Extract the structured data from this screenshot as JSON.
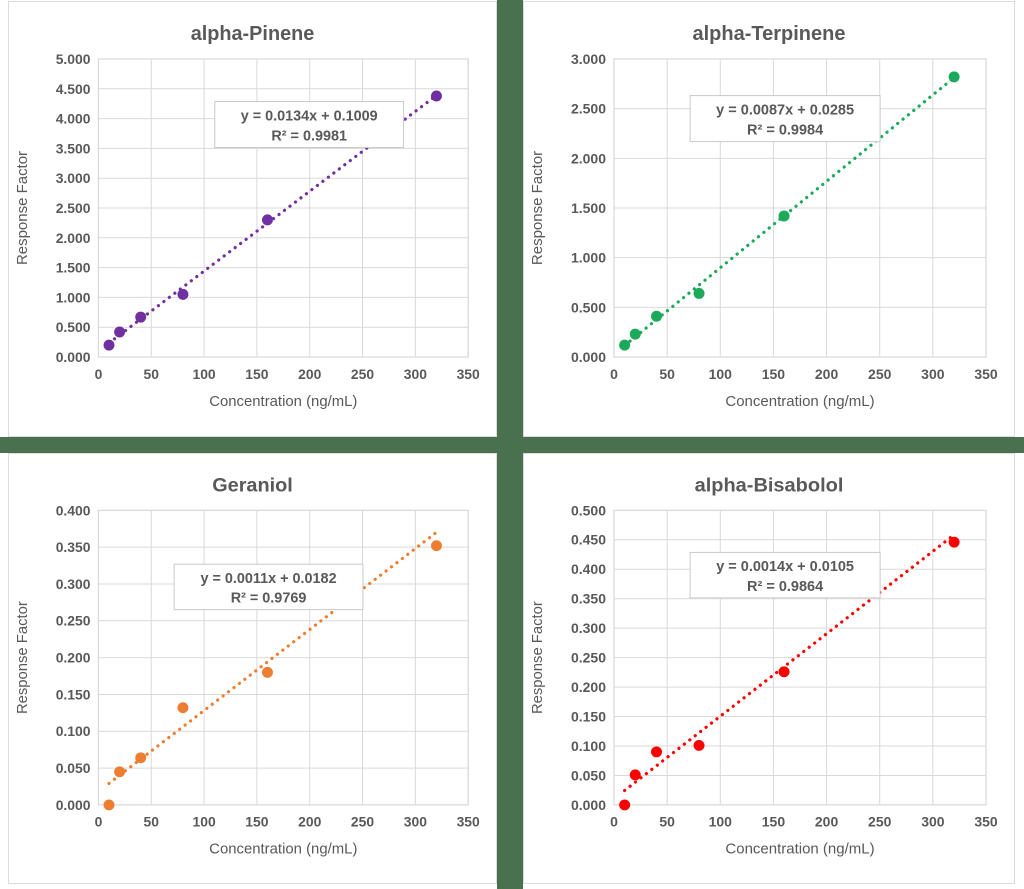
{
  "page": {
    "background_color": "#FFFFFF",
    "divider_color": "#49714F",
    "panel_border_color": "#DBDBDB",
    "grid_color": "#D9D9D9",
    "text_color": "#595959",
    "equation_box_border_color": "#C9C9C9",
    "equation_box_fill": "#FFFFFF"
  },
  "chart_data": [
    {
      "id": "alpha-pinene",
      "type": "scatter",
      "title": "alpha-Pinene",
      "xlabel": "Concentration (ng/mL)",
      "ylabel": "Response Factor",
      "point_color": "#7030A0",
      "x": [
        10,
        20,
        40,
        80,
        160,
        320
      ],
      "y": [
        0.2,
        0.42,
        0.67,
        1.05,
        2.3,
        4.38
      ],
      "xlim": [
        0,
        350
      ],
      "ylim": [
        0,
        5.0
      ],
      "x_ticks": [
        "0",
        "50",
        "100",
        "150",
        "200",
        "250",
        "300",
        "350"
      ],
      "y_ticks": [
        "0.000",
        "0.500",
        "1.000",
        "1.500",
        "2.000",
        "2.500",
        "3.000",
        "3.500",
        "4.000",
        "4.500",
        "5.000"
      ],
      "equation": "y = 0.0134x + 0.1009",
      "r2": "R² = 0.9981",
      "trend": {
        "slope": 0.0134,
        "intercept": 0.1009
      },
      "trendline_style": "dotted",
      "grid": true,
      "legend": "none",
      "eq_box_center": [
        0.57,
        0.22
      ]
    },
    {
      "id": "alpha-terpinene",
      "type": "scatter",
      "title": "alpha-Terpinene",
      "xlabel": "Concentration (ng/mL)",
      "ylabel": "Response Factor",
      "point_color": "#1CAA5A",
      "x": [
        10,
        20,
        40,
        80,
        160,
        320
      ],
      "y": [
        0.12,
        0.23,
        0.41,
        0.64,
        1.42,
        2.82
      ],
      "xlim": [
        0,
        350
      ],
      "ylim": [
        0,
        3.0
      ],
      "x_ticks": [
        "0",
        "50",
        "100",
        "150",
        "200",
        "250",
        "300",
        "350"
      ],
      "y_ticks": [
        "0.000",
        "0.500",
        "1.000",
        "1.500",
        "2.000",
        "2.500",
        "3.000"
      ],
      "equation": "y = 0.0087x + 0.0285",
      "r2": "R² = 0.9984",
      "trend": {
        "slope": 0.0087,
        "intercept": 0.0285
      },
      "trendline_style": "dotted",
      "grid": true,
      "legend": "none",
      "eq_box_center": [
        0.46,
        0.2
      ]
    },
    {
      "id": "geraniol",
      "type": "scatter",
      "title": "Geraniol",
      "xlabel": "Concentration (ng/mL)",
      "ylabel": "Response Factor",
      "point_color": "#ED7D31",
      "x": [
        10,
        20,
        40,
        80,
        160,
        320
      ],
      "y": [
        0.0,
        0.045,
        0.064,
        0.132,
        0.18,
        0.352
      ],
      "xlim": [
        0,
        350
      ],
      "ylim": [
        0,
        0.4
      ],
      "x_ticks": [
        "0",
        "50",
        "100",
        "150",
        "200",
        "250",
        "300",
        "350"
      ],
      "y_ticks": [
        "0.000",
        "0.050",
        "0.100",
        "0.150",
        "0.200",
        "0.250",
        "0.300",
        "0.350",
        "0.400"
      ],
      "equation": "y = 0.0011x + 0.0182",
      "r2": "R² = 0.9769",
      "trend": {
        "slope": 0.0011,
        "intercept": 0.0182
      },
      "trendline_style": "dotted",
      "grid": true,
      "legend": "none",
      "eq_box_center": [
        0.46,
        0.26
      ]
    },
    {
      "id": "alpha-bisabolol",
      "type": "scatter",
      "title": "alpha-Bisabolol",
      "xlabel": "Concentration (ng/mL)",
      "ylabel": "Response Factor",
      "point_color": "#FF0000",
      "x": [
        10,
        20,
        40,
        80,
        160,
        320
      ],
      "y": [
        0.0,
        0.051,
        0.09,
        0.101,
        0.226,
        0.446
      ],
      "xlim": [
        0,
        350
      ],
      "ylim": [
        0,
        0.5
      ],
      "x_ticks": [
        "0",
        "50",
        "100",
        "150",
        "200",
        "250",
        "300",
        "350"
      ],
      "y_ticks": [
        "0.000",
        "0.050",
        "0.100",
        "0.150",
        "0.200",
        "0.250",
        "0.300",
        "0.350",
        "0.400",
        "0.450",
        "0.500"
      ],
      "equation": "y = 0.0014x + 0.0105",
      "r2": "R² = 0.9864",
      "trend": {
        "slope": 0.0014,
        "intercept": 0.0105
      },
      "trendline_style": "dotted",
      "grid": true,
      "legend": "none",
      "eq_box_center": [
        0.46,
        0.22
      ]
    }
  ]
}
